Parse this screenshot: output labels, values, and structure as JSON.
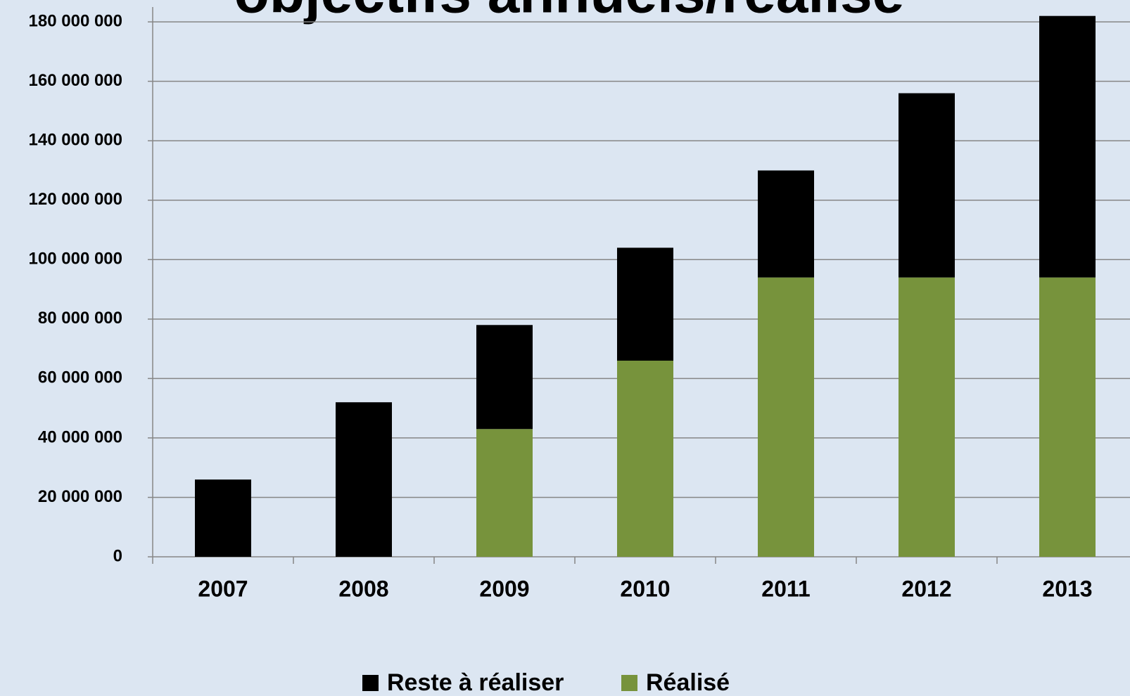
{
  "chart_data": {
    "type": "stacked-bar",
    "title": "objectifs annuels/réalisé",
    "categories": [
      "2007",
      "2008",
      "2009",
      "2010",
      "2011",
      "2012",
      "2013"
    ],
    "series": [
      {
        "name": "Reste à réaliser",
        "color": "#000000",
        "values": [
          26000000,
          52000000,
          35000000,
          38000000,
          36000000,
          62000000,
          88000000
        ]
      },
      {
        "name": "Réalisé",
        "color": "#77933c",
        "values": [
          0,
          0,
          43000000,
          66000000,
          94000000,
          94000000,
          94000000
        ]
      }
    ],
    "ylim": [
      0,
      185000000
    ],
    "yticks": [
      {
        "value": 0,
        "label": "0"
      },
      {
        "value": 20000000,
        "label": "20 000 000"
      },
      {
        "value": 40000000,
        "label": "40 000 000"
      },
      {
        "value": 60000000,
        "label": "60 000 000"
      },
      {
        "value": 80000000,
        "label": "80 000 000"
      },
      {
        "value": 100000000,
        "label": "100 000 000"
      },
      {
        "value": 120000000,
        "label": "120 000 000"
      },
      {
        "value": 140000000,
        "label": "140 000 000"
      },
      {
        "value": 160000000,
        "label": "160 000 000"
      },
      {
        "value": 180000000,
        "label": "180 000 000"
      }
    ],
    "grid": true,
    "legend": "bottom"
  }
}
